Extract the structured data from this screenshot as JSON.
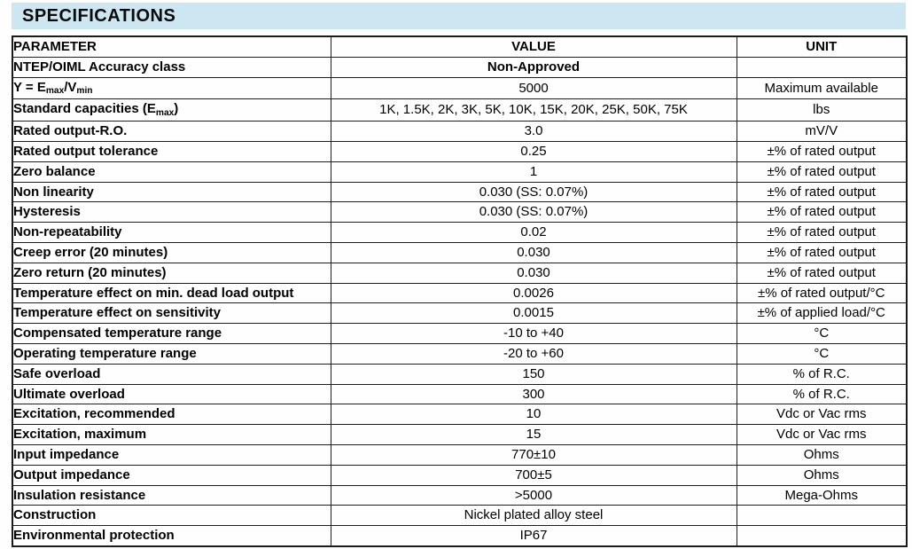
{
  "title": "SPECIFICATIONS",
  "colors": {
    "title_bar_bg": "#cde7f2",
    "border": "#1f1f1f",
    "text": "#000000"
  },
  "table": {
    "headers": {
      "parameter": "PARAMETER",
      "value": "VALUE",
      "unit": "UNIT"
    },
    "rows": [
      {
        "parameter": "NTEP/OIML Accuracy class",
        "value": "Non-Approved",
        "unit": "",
        "value_bold": true
      },
      {
        "parameter": "Y = E_{max}/V_{min}",
        "value": "5000",
        "unit": "Maximum available",
        "value_bold": false
      },
      {
        "parameter": "Standard capacities (E_{max})",
        "value": "1K, 1.5K, 2K, 3K, 5K, 10K, 15K, 20K, 25K, 50K, 75K",
        "unit": "lbs",
        "value_bold": false
      },
      {
        "parameter": "Rated output-R.O.",
        "value": "3.0",
        "unit": "mV/V",
        "value_bold": false
      },
      {
        "parameter": "Rated output tolerance",
        "value": "0.25",
        "unit": "±% of rated output",
        "value_bold": false
      },
      {
        "parameter": "Zero balance",
        "value": "1",
        "unit": "±% of rated output",
        "value_bold": false
      },
      {
        "parameter": "Non linearity",
        "value": "0.030 (SS: 0.07%)",
        "unit": "±% of rated output",
        "value_bold": false
      },
      {
        "parameter": "Hysteresis",
        "value": "0.030 (SS: 0.07%)",
        "unit": "±% of rated output",
        "value_bold": false
      },
      {
        "parameter": "Non-repeatability",
        "value": "0.02",
        "unit": "±% of rated output",
        "value_bold": false
      },
      {
        "parameter": "Creep error (20 minutes)",
        "value": "0.030",
        "unit": "±% of rated output",
        "value_bold": false
      },
      {
        "parameter": "Zero return (20 minutes)",
        "value": "0.030",
        "unit": "±% of rated output",
        "value_bold": false
      },
      {
        "parameter": "Temperature effect on min. dead load output",
        "value": "0.0026",
        "unit": "±% of rated output/°C",
        "value_bold": false
      },
      {
        "parameter": "Temperature effect on sensitivity",
        "value": "0.0015",
        "unit": "±% of applied load/°C",
        "value_bold": false
      },
      {
        "parameter": "Compensated temperature range",
        "value": "-10 to +40",
        "unit": "°C",
        "value_bold": false
      },
      {
        "parameter": "Operating temperature range",
        "value": "-20 to +60",
        "unit": "°C",
        "value_bold": false
      },
      {
        "parameter": "Safe overload",
        "value": "150",
        "unit": "% of R.C.",
        "value_bold": false
      },
      {
        "parameter": "Ultimate overload",
        "value": "300",
        "unit": "% of R.C.",
        "value_bold": false
      },
      {
        "parameter": "Excitation, recommended",
        "value": "10",
        "unit": "Vdc or Vac rms",
        "value_bold": false
      },
      {
        "parameter": "Excitation, maximum",
        "value": "15",
        "unit": "Vdc or Vac rms",
        "value_bold": false
      },
      {
        "parameter": "Input impedance",
        "value": "770±10",
        "unit": "Ohms",
        "value_bold": false
      },
      {
        "parameter": "Output impedance",
        "value": "700±5",
        "unit": "Ohms",
        "value_bold": false
      },
      {
        "parameter": "Insulation resistance",
        "value": ">5000",
        "unit": "Mega-Ohms",
        "value_bold": false
      },
      {
        "parameter": "Construction",
        "value": "Nickel plated alloy steel",
        "unit": "",
        "value_bold": false
      },
      {
        "parameter": "Environmental protection",
        "value": "IP67",
        "unit": "",
        "value_bold": false
      }
    ]
  }
}
